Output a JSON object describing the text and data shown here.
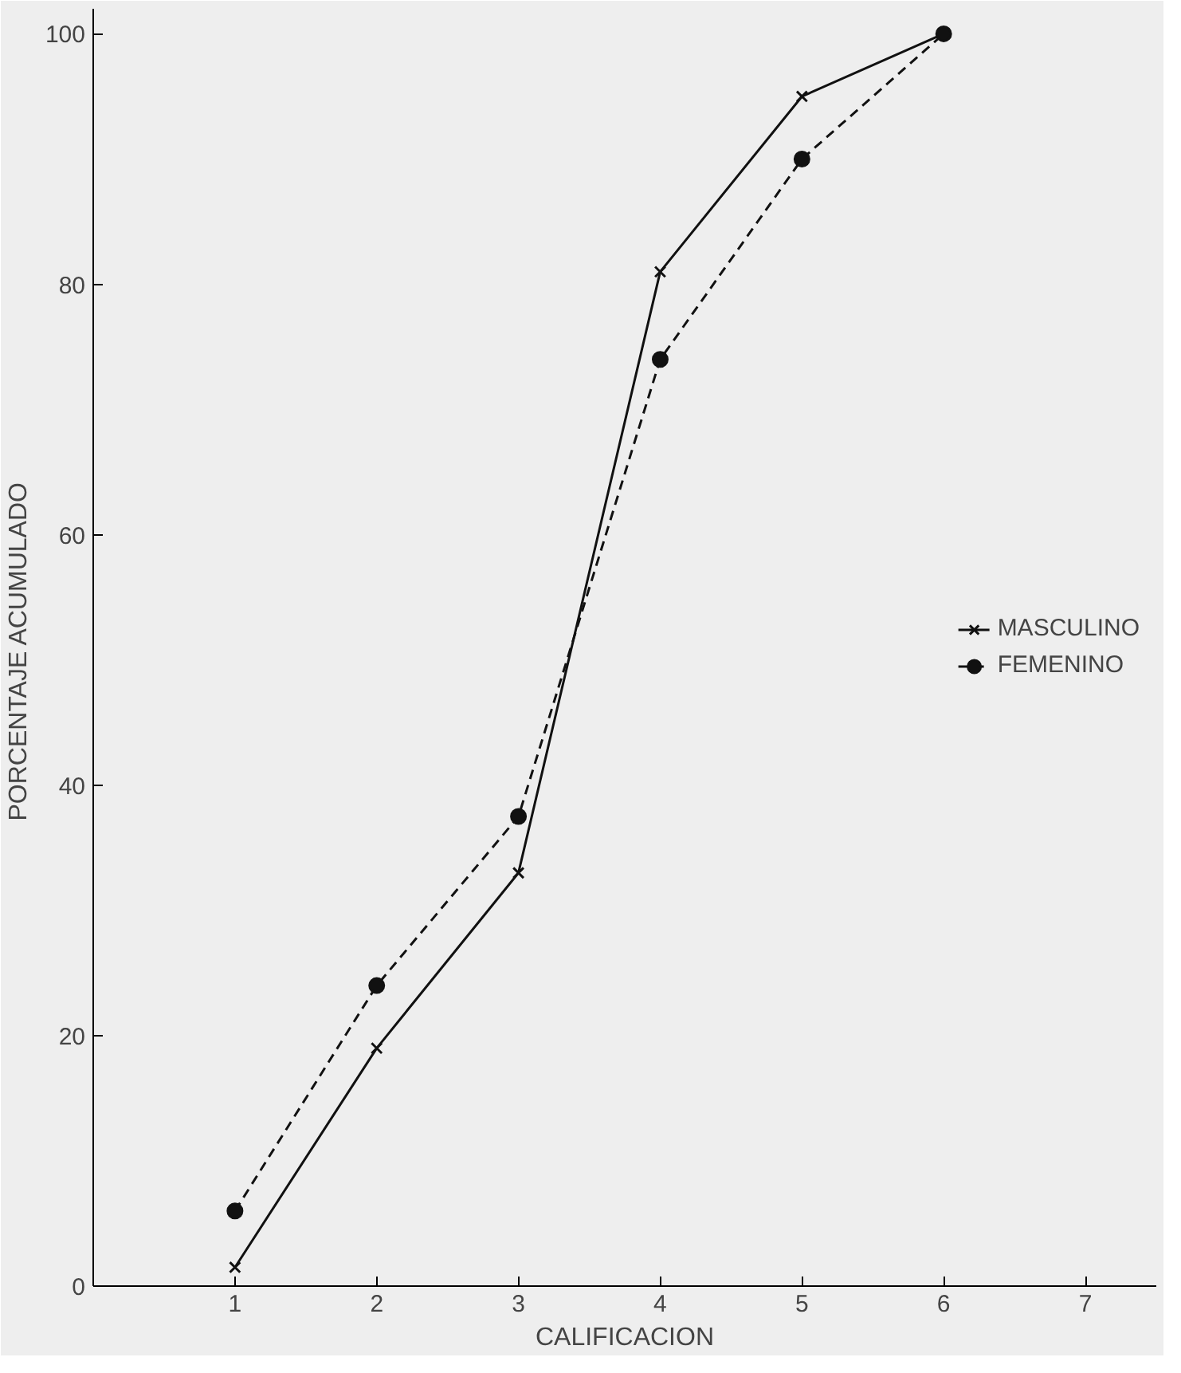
{
  "chart_data": {
    "type": "line",
    "xlabel": "CALIFICACION",
    "ylabel": "PORCENTAJE  ACUMULADO",
    "x": [
      1,
      2,
      3,
      4,
      5,
      6
    ],
    "series": [
      {
        "name": "MASCULINO",
        "color": "#111111",
        "marker": "cross",
        "line_style": "solid",
        "values": [
          1.5,
          19,
          33,
          81,
          95,
          100
        ]
      },
      {
        "name": "FEMENINO",
        "color": "#111111",
        "marker": "circle",
        "line_style": "dashed",
        "values": [
          6,
          24,
          37.5,
          74,
          90,
          100
        ]
      }
    ],
    "xlim": [
      0,
      7.5
    ],
    "ylim": [
      0,
      102
    ],
    "xticks": [
      1,
      2,
      3,
      4,
      5,
      6,
      7
    ],
    "yticks": [
      0,
      20,
      40,
      60,
      80,
      100
    ],
    "grid": false,
    "legend": "right"
  }
}
